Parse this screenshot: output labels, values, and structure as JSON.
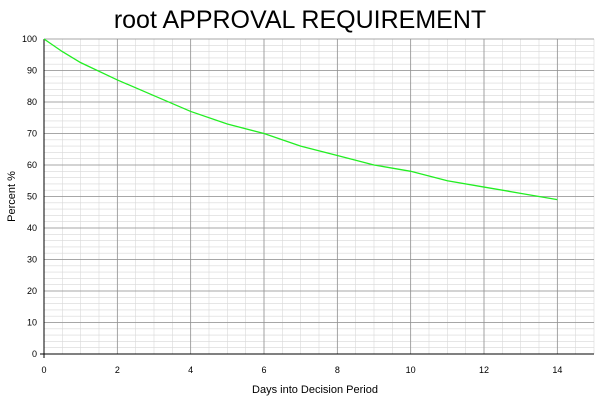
{
  "chart_data": {
    "type": "line",
    "title": "root APPROVAL REQUIREMENT",
    "xlabel": "Days into Decision Period",
    "ylabel": "Percent %",
    "xlim": [
      0,
      15
    ],
    "ylim": [
      0,
      100
    ],
    "x_ticks": [
      0,
      2,
      4,
      6,
      8,
      10,
      12,
      14
    ],
    "y_ticks": [
      0,
      10,
      20,
      30,
      40,
      50,
      60,
      70,
      80,
      90,
      100
    ],
    "grid": true,
    "legend": "none",
    "series": [
      {
        "color": "#22ee22",
        "x": [
          0,
          0.5,
          1,
          2,
          3,
          4,
          5,
          6,
          7,
          8,
          9,
          10,
          11,
          12,
          13,
          14
        ],
        "values": [
          100,
          96,
          92.5,
          87,
          82,
          77,
          73,
          70,
          66,
          63,
          60,
          58,
          55,
          53,
          51,
          49
        ]
      }
    ]
  }
}
